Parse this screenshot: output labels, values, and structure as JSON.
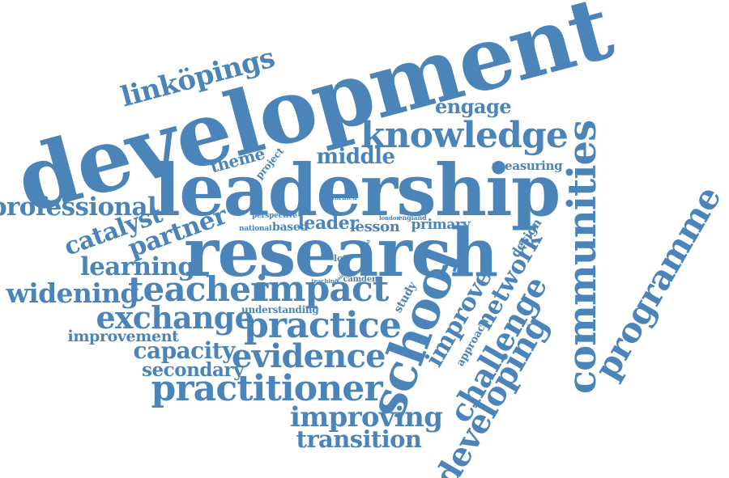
{
  "colors": {
    "word": "#4a84b8",
    "background": "#ffffff"
  },
  "words": {
    "development": "development",
    "leadership": "leadership",
    "research": "research",
    "knowledge": "knowledge",
    "linkopings": "linköpings",
    "engage": "engage",
    "middle": "middle",
    "measuring": "measuring",
    "theme": "theme",
    "project": "project",
    "professional": "professional",
    "catalyst": "catalyst",
    "partner": "partner",
    "learning": "learning",
    "widening": "widening",
    "teacher": "teacher",
    "impact": "impact",
    "exchange": "exchange",
    "improvement": "improvement",
    "practice": "practice",
    "capacity": "capacity",
    "evidence": "evidence",
    "secondary": "secondary",
    "practitioner": "practitioner",
    "school": "school",
    "improving": "improving",
    "transition": "transition",
    "communities": "communities",
    "programme": "programme",
    "network": "network",
    "improve": "improve",
    "challenge": "challenge",
    "developing": "developing",
    "approach": "approach",
    "design": "design",
    "study": "study",
    "leader": "leader",
    "lesson": "lesson",
    "primary": "primary",
    "based": "based",
    "national": "national",
    "perspective": "perspective",
    "informed": "informed",
    "london": "london",
    "england": "england",
    "understanding": "understanding",
    "lot": "lot",
    "camden": "camden",
    "teaching": "teaching",
    "joint": "joint",
    "context": "context"
  }
}
